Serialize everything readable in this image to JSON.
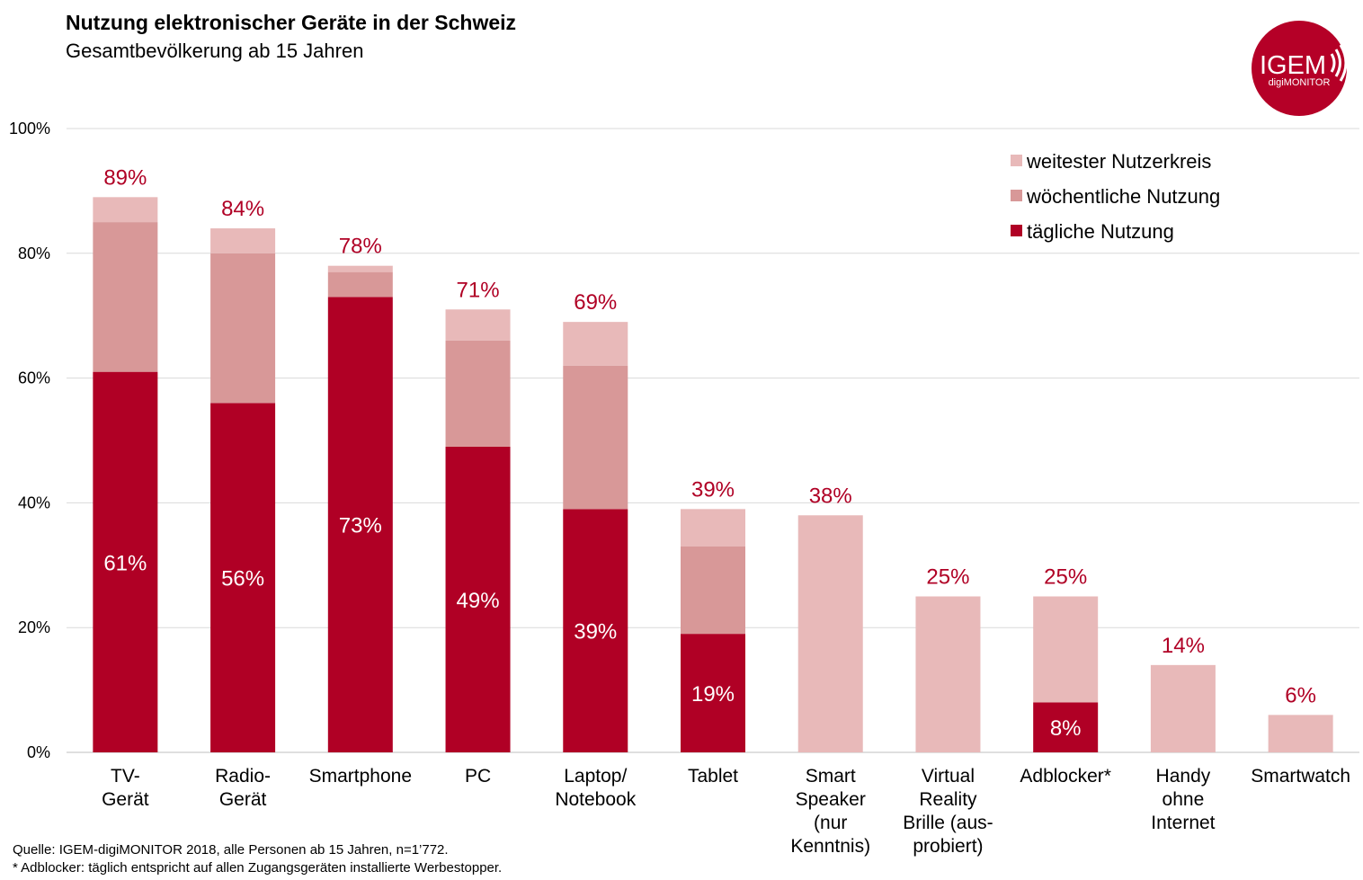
{
  "header": {
    "title": "Nutzung elektronischer Geräte in der Schweiz",
    "subtitle": "Gesamtbevölkerung ab 15 Jahren"
  },
  "logo": {
    "main_text": "IGEM",
    "sub_text": "digiMONITOR",
    "color": "#b50027"
  },
  "footnotes": {
    "source": "Quelle:  IGEM-digiMONITOR  2018, alle Personen ab 15 Jahren, n=1’772.",
    "note": "* Adblocker: täglich entspricht auf allen Zugangsgeräten  installierte  Werbestopper."
  },
  "chart_data": {
    "type": "bar",
    "stacked": true,
    "ylim": [
      0,
      100
    ],
    "yticks": [
      "0%",
      "20%",
      "40%",
      "60%",
      "80%",
      "100%"
    ],
    "grid": true,
    "legend_position": "top-right",
    "categories": [
      [
        "TV-",
        "Gerät"
      ],
      [
        "Radio-",
        "Gerät"
      ],
      [
        "Smartphone"
      ],
      [
        "PC"
      ],
      [
        "Laptop/",
        "Notebook"
      ],
      [
        "Tablet"
      ],
      [
        "Smart",
        "Speaker",
        "(nur",
        "Kenntnis)"
      ],
      [
        "Virtual",
        "Reality",
        "Brille (aus-",
        "probiert)"
      ],
      [
        "Adblocker*"
      ],
      [
        "Handy",
        "ohne",
        "Internet"
      ],
      [
        "Smartwatch"
      ]
    ],
    "series": [
      {
        "name": "tägliche Nutzung",
        "color": "#b00025",
        "values": [
          61,
          56,
          73,
          49,
          39,
          19,
          0,
          0,
          8,
          0,
          0
        ]
      },
      {
        "name": "wöchentliche Nutzung",
        "color": "#d89898",
        "values": [
          24,
          24,
          4,
          17,
          23,
          14,
          0,
          0,
          0,
          0,
          0
        ]
      },
      {
        "name": "weitester Nutzerkreis",
        "color": "#e8b9b9",
        "values": [
          4,
          4,
          1,
          5,
          7,
          6,
          38,
          25,
          17,
          14,
          6
        ]
      }
    ],
    "legend_order": [
      "weitester Nutzerkreis",
      "wöchentliche Nutzung",
      "tägliche Nutzung"
    ],
    "total_labels": [
      "89%",
      "84%",
      "78%",
      "71%",
      "69%",
      "39%",
      "38%",
      "25%",
      "25%",
      "14%",
      "6%"
    ],
    "daily_labels": [
      "61%",
      "56%",
      "73%",
      "49%",
      "39%",
      "19%",
      "",
      "",
      "8%",
      "",
      ""
    ],
    "label_color": "#b00025"
  }
}
